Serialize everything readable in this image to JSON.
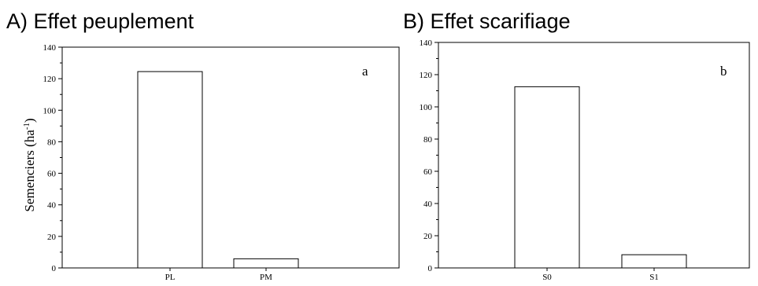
{
  "chart_data": [
    {
      "type": "bar",
      "title": "A) Effet peuplement",
      "panel_label": "a",
      "ylabel": "Semenciers (ha",
      "ylabel_sup": "-1",
      "ylabel_close": ")",
      "categories": [
        "PL",
        "PM"
      ],
      "values": [
        124.5,
        5.8
      ],
      "ylim": [
        0,
        140
      ],
      "yticks": [
        0,
        20,
        40,
        60,
        80,
        100,
        120,
        140
      ],
      "grid": false,
      "legend": "none"
    },
    {
      "type": "bar",
      "title": "B) Effet scarifiage",
      "panel_label": "b",
      "ylabel": "",
      "categories": [
        "S0",
        "S1"
      ],
      "values": [
        112.5,
        8.2
      ],
      "ylim": [
        0,
        140
      ],
      "yticks": [
        0,
        20,
        40,
        60,
        80,
        100,
        120,
        140
      ],
      "grid": false,
      "legend": "none"
    }
  ]
}
